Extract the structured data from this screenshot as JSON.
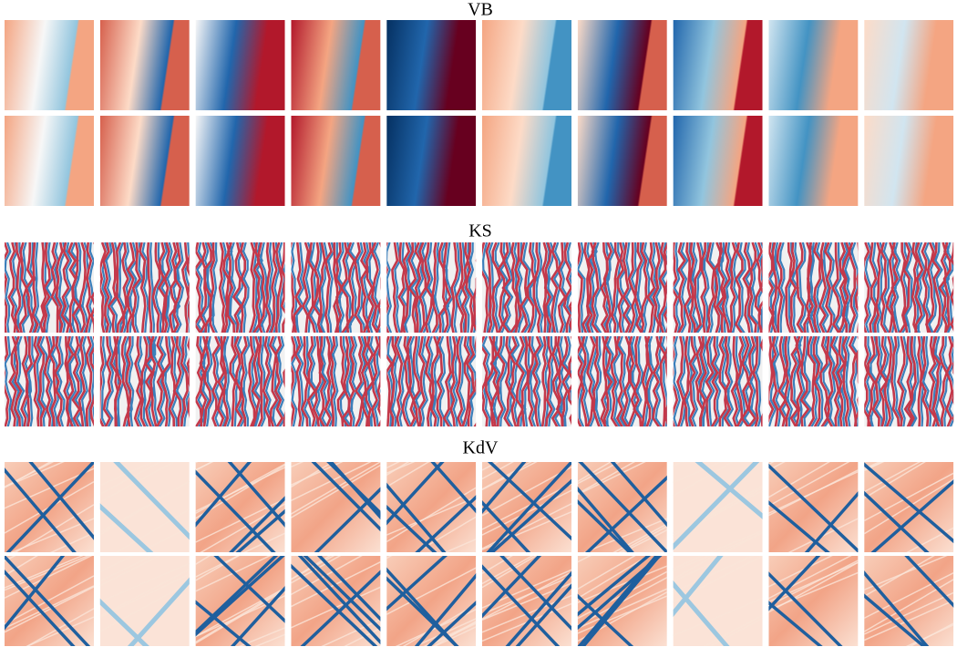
{
  "sections": [
    {
      "title": "VB"
    },
    {
      "title": "KS"
    },
    {
      "title": "KdV"
    }
  ]
}
